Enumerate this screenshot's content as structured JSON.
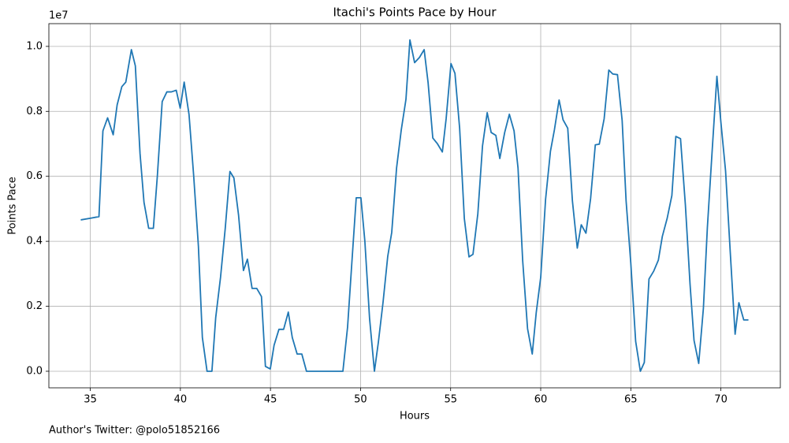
{
  "chart_data": {
    "type": "line",
    "title": "Itachi's Points Pace by Hour",
    "xlabel": "Hours",
    "ylabel": "Points Pace",
    "y_offset_label": "1e7",
    "footnote": "Author's Twitter: @polo51852166",
    "color": "#1f77b4",
    "grid": true,
    "xlim": [
      32.7,
      73.3
    ],
    "ylim": [
      -0.051,
      1.07
    ],
    "xticks": [
      35,
      40,
      45,
      50,
      55,
      60,
      65,
      70
    ],
    "yticks": [
      {
        "value": 0,
        "label": "0.0"
      },
      0.2,
      0.4,
      0.6,
      0.8,
      {
        "value": 1,
        "label": "1.0"
      }
    ],
    "x": [
      34.47,
      35.0,
      35.48,
      35.7,
      35.96,
      36.27,
      36.49,
      36.75,
      36.97,
      37.28,
      37.5,
      37.76,
      37.98,
      38.24,
      38.5,
      38.72,
      38.99,
      39.25,
      39.5,
      39.77,
      39.99,
      40.21,
      40.48,
      40.74,
      41.0,
      41.22,
      41.48,
      41.75,
      41.96,
      42.23,
      42.49,
      42.75,
      42.97,
      43.23,
      43.5,
      43.72,
      43.98,
      44.24,
      44.5,
      44.72,
      44.99,
      45.2,
      45.47,
      45.73,
      45.99,
      46.21,
      46.48,
      46.74,
      47.0,
      47.5,
      48.0,
      48.5,
      49.02,
      49.28,
      49.5,
      49.76,
      50.02,
      50.24,
      50.5,
      50.77,
      50.99,
      51.25,
      51.51,
      51.73,
      52.0,
      52.26,
      52.52,
      52.74,
      53.0,
      53.27,
      53.53,
      53.75,
      54.01,
      54.27,
      54.54,
      54.75,
      55.02,
      55.24,
      55.5,
      55.76,
      56.02,
      56.24,
      56.51,
      56.77,
      57.03,
      57.25,
      57.51,
      57.73,
      58.0,
      58.26,
      58.52,
      58.74,
      59.0,
      59.27,
      59.53,
      59.75,
      60.0,
      60.27,
      60.54,
      60.76,
      61.02,
      61.24,
      61.5,
      61.76,
      62.03,
      62.25,
      62.51,
      62.77,
      63.03,
      63.25,
      63.52,
      63.78,
      64.0,
      64.26,
      64.52,
      64.74,
      65.0,
      65.27,
      65.53,
      65.75,
      66.01,
      66.27,
      66.53,
      66.75,
      67.02,
      67.28,
      67.5,
      67.76,
      68.03,
      68.29,
      68.51,
      68.77,
      69.03,
      69.25,
      69.52,
      69.78,
      70.0,
      70.26,
      70.52,
      70.79,
      71.0,
      71.27,
      71.53
    ],
    "values": [
      0.466,
      0.471,
      0.476,
      0.74,
      0.78,
      0.728,
      0.82,
      0.876,
      0.89,
      0.99,
      0.94,
      0.67,
      0.52,
      0.44,
      0.44,
      0.6,
      0.83,
      0.86,
      0.86,
      0.865,
      0.81,
      0.89,
      0.79,
      0.6,
      0.385,
      0.104,
      0,
      0,
      0.165,
      0.29,
      0.44,
      0.615,
      0.595,
      0.48,
      0.31,
      0.345,
      0.255,
      0.255,
      0.23,
      0.015,
      0.007,
      0.08,
      0.129,
      0.129,
      0.182,
      0.104,
      0.053,
      0.053,
      0,
      0,
      0,
      0,
      0,
      0.136,
      0.32,
      0.534,
      0.534,
      0.4,
      0.163,
      0,
      0.09,
      0.213,
      0.354,
      0.427,
      0.626,
      0.743,
      0.837,
      1.02,
      0.95,
      0.966,
      0.99,
      0.888,
      0.718,
      0.7,
      0.675,
      0.777,
      0.947,
      0.917,
      0.748,
      0.47,
      0.352,
      0.36,
      0.485,
      0.694,
      0.796,
      0.735,
      0.726,
      0.655,
      0.735,
      0.791,
      0.74,
      0.626,
      0.34,
      0.131,
      0.053,
      0.18,
      0.289,
      0.529,
      0.677,
      0.743,
      0.835,
      0.774,
      0.748,
      0.524,
      0.379,
      0.451,
      0.425,
      0.532,
      0.697,
      0.699,
      0.777,
      0.927,
      0.915,
      0.913,
      0.772,
      0.524,
      0.333,
      0.092,
      0,
      0.027,
      0.284,
      0.308,
      0.342,
      0.415,
      0.471,
      0.541,
      0.723,
      0.716,
      0.512,
      0.267,
      0.095,
      0.024,
      0.194,
      0.442,
      0.682,
      0.908,
      0.767,
      0.617,
      0.367,
      0.114,
      0.211,
      0.158,
      0.158
    ]
  }
}
